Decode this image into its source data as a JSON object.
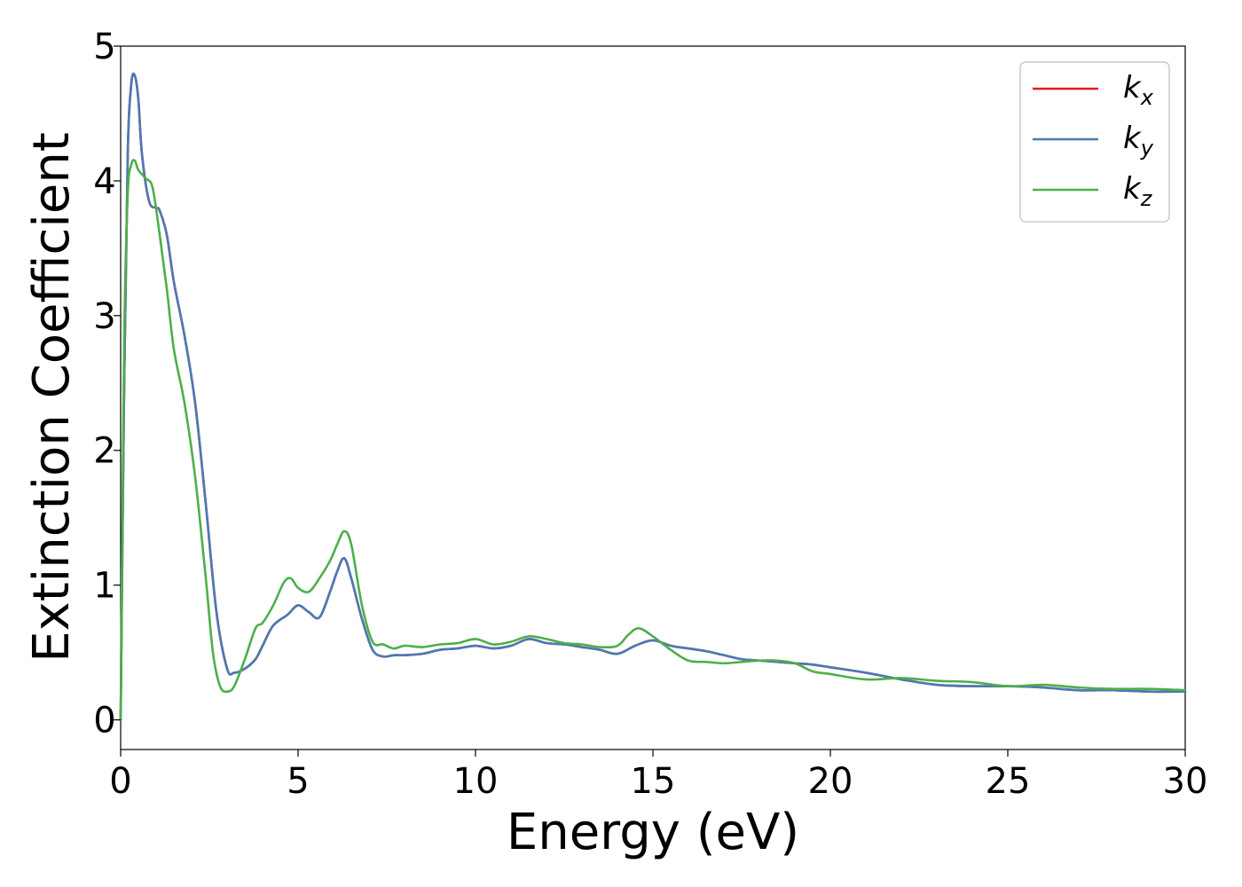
{
  "chart_data": {
    "type": "line",
    "xlabel": "Energy (eV)",
    "ylabel": "Extinction Coefficient",
    "xlim": [
      0,
      30
    ],
    "ylim": [
      -0.22,
      5
    ],
    "xticks": [
      "0",
      "5",
      "10",
      "15",
      "20",
      "25",
      "30"
    ],
    "yticks": [
      "0",
      "1",
      "2",
      "3",
      "4",
      "5"
    ],
    "grid": false,
    "legend_position": "top-right",
    "series": [
      {
        "name": "k_x",
        "label_base": "k",
        "label_sub": "x",
        "color": "#e41a1c",
        "x": [
          0,
          0.1,
          0.2,
          0.3,
          0.4,
          0.5,
          0.6,
          0.8,
          1.0,
          1.1,
          1.3,
          1.5,
          1.8,
          2.1,
          2.4,
          2.7,
          3.0,
          3.2,
          3.5,
          3.8,
          4.0,
          4.3,
          4.7,
          5.0,
          5.3,
          5.6,
          5.9,
          6.1,
          6.3,
          6.5,
          6.8,
          7.1,
          7.4,
          7.7,
          8.0,
          8.5,
          9.0,
          9.5,
          10.0,
          10.5,
          11.0,
          11.5,
          12.0,
          12.5,
          13.0,
          13.5,
          14.0,
          14.5,
          15.0,
          15.5,
          16.0,
          16.5,
          17.0,
          17.5,
          18.0,
          18.5,
          19.0,
          19.5,
          20.0,
          21.0,
          22.0,
          23.0,
          24.0,
          25.0,
          26.0,
          27.0,
          28.0,
          29.0,
          30.0
        ],
        "y": [
          0.0,
          2.5,
          4.2,
          4.72,
          4.78,
          4.6,
          4.2,
          3.85,
          3.8,
          3.78,
          3.6,
          3.25,
          2.85,
          2.35,
          1.6,
          0.8,
          0.38,
          0.35,
          0.38,
          0.45,
          0.55,
          0.7,
          0.78,
          0.85,
          0.8,
          0.76,
          0.95,
          1.1,
          1.2,
          1.05,
          0.75,
          0.52,
          0.47,
          0.48,
          0.48,
          0.49,
          0.52,
          0.53,
          0.55,
          0.53,
          0.55,
          0.6,
          0.57,
          0.56,
          0.54,
          0.52,
          0.49,
          0.55,
          0.59,
          0.55,
          0.53,
          0.51,
          0.48,
          0.45,
          0.44,
          0.43,
          0.42,
          0.41,
          0.39,
          0.35,
          0.3,
          0.26,
          0.25,
          0.25,
          0.24,
          0.22,
          0.22,
          0.21,
          0.21
        ]
      },
      {
        "name": "k_y",
        "label_base": "k",
        "label_sub": "y",
        "color": "#4a7ab5",
        "x": [
          0,
          0.1,
          0.2,
          0.3,
          0.4,
          0.5,
          0.6,
          0.8,
          1.0,
          1.1,
          1.3,
          1.5,
          1.8,
          2.1,
          2.4,
          2.7,
          3.0,
          3.2,
          3.5,
          3.8,
          4.0,
          4.3,
          4.7,
          5.0,
          5.3,
          5.6,
          5.9,
          6.1,
          6.3,
          6.5,
          6.8,
          7.1,
          7.4,
          7.7,
          8.0,
          8.5,
          9.0,
          9.5,
          10.0,
          10.5,
          11.0,
          11.5,
          12.0,
          12.5,
          13.0,
          13.5,
          14.0,
          14.5,
          15.0,
          15.5,
          16.0,
          16.5,
          17.0,
          17.5,
          18.0,
          18.5,
          19.0,
          19.5,
          20.0,
          21.0,
          22.0,
          23.0,
          24.0,
          25.0,
          26.0,
          27.0,
          28.0,
          29.0,
          30.0
        ],
        "y": [
          0.0,
          2.5,
          4.2,
          4.72,
          4.78,
          4.6,
          4.2,
          3.85,
          3.8,
          3.78,
          3.6,
          3.25,
          2.85,
          2.35,
          1.6,
          0.8,
          0.38,
          0.35,
          0.38,
          0.45,
          0.55,
          0.7,
          0.78,
          0.85,
          0.8,
          0.76,
          0.95,
          1.1,
          1.2,
          1.05,
          0.75,
          0.52,
          0.47,
          0.48,
          0.48,
          0.49,
          0.52,
          0.53,
          0.55,
          0.53,
          0.55,
          0.6,
          0.57,
          0.56,
          0.54,
          0.52,
          0.49,
          0.55,
          0.59,
          0.55,
          0.53,
          0.51,
          0.48,
          0.45,
          0.44,
          0.43,
          0.42,
          0.41,
          0.39,
          0.35,
          0.3,
          0.26,
          0.25,
          0.25,
          0.24,
          0.22,
          0.22,
          0.21,
          0.21
        ]
      },
      {
        "name": "k_z",
        "label_base": "k",
        "label_sub": "z",
        "color": "#4daf4a",
        "x": [
          0,
          0.1,
          0.2,
          0.3,
          0.4,
          0.5,
          0.7,
          0.9,
          1.1,
          1.3,
          1.5,
          1.8,
          2.1,
          2.4,
          2.6,
          2.8,
          3.0,
          3.2,
          3.5,
          3.8,
          4.0,
          4.3,
          4.6,
          4.8,
          5.0,
          5.3,
          5.6,
          5.9,
          6.1,
          6.3,
          6.5,
          6.8,
          7.1,
          7.4,
          7.7,
          8.0,
          8.5,
          9.0,
          9.5,
          10.0,
          10.5,
          11.0,
          11.5,
          12.0,
          12.5,
          13.0,
          13.5,
          14.0,
          14.3,
          14.6,
          15.0,
          15.5,
          16.0,
          16.5,
          17.0,
          17.5,
          18.0,
          18.5,
          19.0,
          19.5,
          20.0,
          21.0,
          22.0,
          23.0,
          24.0,
          25.0,
          26.0,
          27.0,
          28.0,
          29.0,
          30.0
        ],
        "y": [
          0.0,
          2.8,
          3.9,
          4.12,
          4.15,
          4.08,
          4.02,
          3.95,
          3.6,
          3.2,
          2.75,
          2.35,
          1.8,
          1.05,
          0.5,
          0.25,
          0.21,
          0.25,
          0.45,
          0.68,
          0.72,
          0.85,
          1.02,
          1.05,
          0.98,
          0.95,
          1.05,
          1.18,
          1.3,
          1.4,
          1.3,
          0.85,
          0.58,
          0.56,
          0.53,
          0.55,
          0.54,
          0.56,
          0.57,
          0.6,
          0.56,
          0.58,
          0.62,
          0.6,
          0.57,
          0.56,
          0.54,
          0.55,
          0.63,
          0.68,
          0.62,
          0.52,
          0.44,
          0.43,
          0.42,
          0.43,
          0.44,
          0.44,
          0.42,
          0.36,
          0.34,
          0.3,
          0.31,
          0.29,
          0.28,
          0.25,
          0.26,
          0.24,
          0.23,
          0.23,
          0.22
        ]
      }
    ]
  }
}
